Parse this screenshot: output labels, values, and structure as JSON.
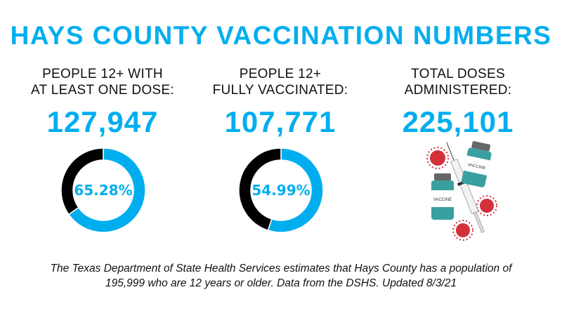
{
  "title": "HAYS COUNTY VACCINATION NUMBERS",
  "colors": {
    "accent": "#00aeef",
    "remainder": "#000000"
  },
  "stats": [
    {
      "label_line1": "PEOPLE  12+ WITH",
      "label_line2": "AT LEAST ONE DOSE:",
      "value": "127,947"
    },
    {
      "label_line1": "PEOPLE 12+",
      "label_line2": "FULLY VACCINATED:",
      "value": "107,771"
    },
    {
      "label_line1": "TOTAL DOSES",
      "label_line2": "ADMINISTERED:",
      "value": "225,101"
    }
  ],
  "illustration": {
    "vial_label": "VACCINE",
    "icon": "vaccine-vials-syringe-virus-illustration"
  },
  "chart_data": [
    {
      "type": "pie",
      "donut": true,
      "label": "65.28%",
      "values": [
        65.28,
        34.72
      ],
      "colors": [
        "#00aeef",
        "#000000"
      ]
    },
    {
      "type": "pie",
      "donut": true,
      "label": "54.99%",
      "values": [
        54.99,
        45.01
      ],
      "colors": [
        "#00aeef",
        "#000000"
      ]
    }
  ],
  "footer": {
    "line1": "The Texas Department of State Health Services estimates that Hays County has a population of",
    "line2": "195,999 who are 12 years or older. Data from the DSHS. Updated 8/3/21"
  }
}
